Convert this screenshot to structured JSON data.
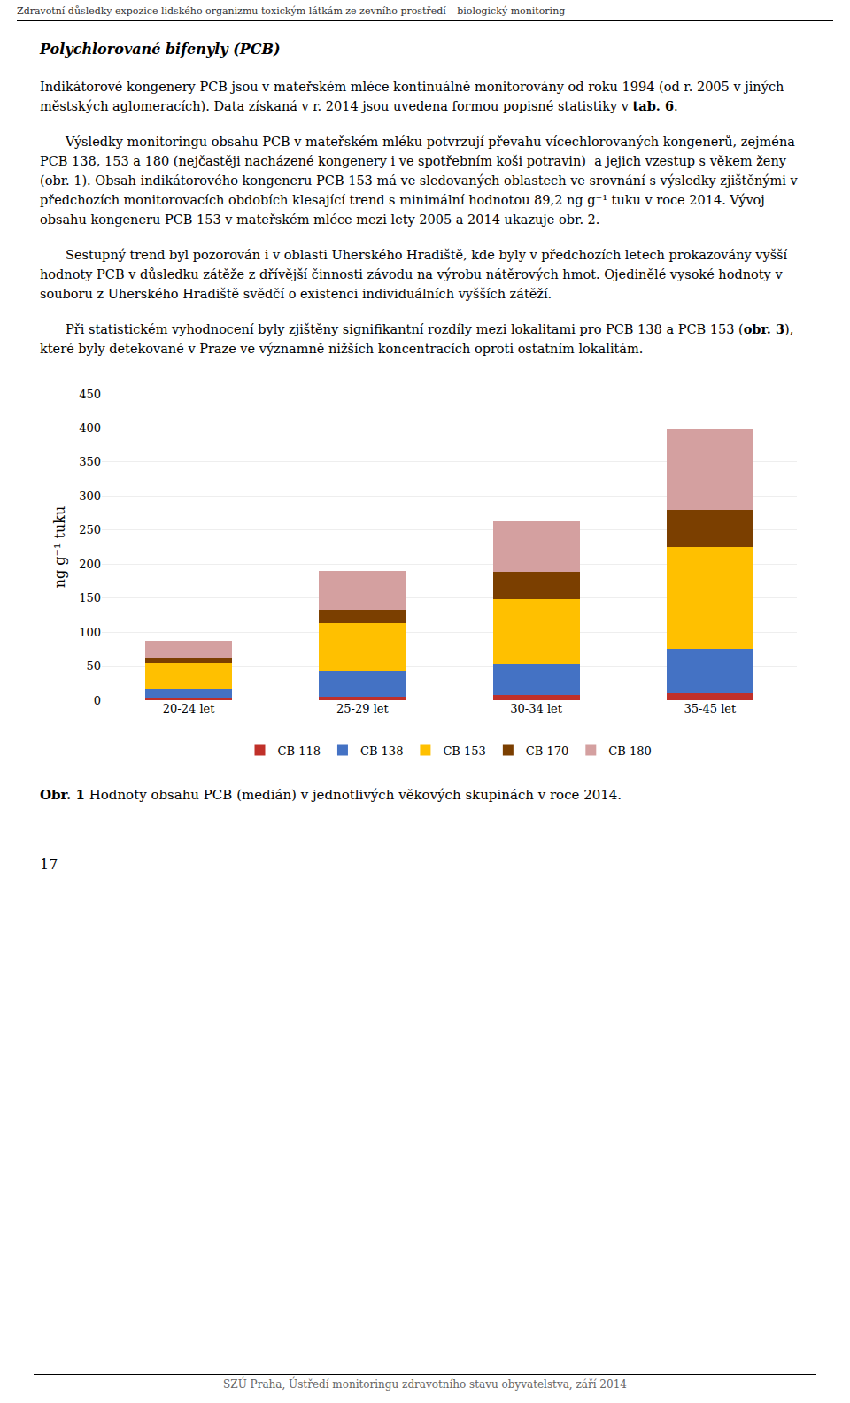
{
  "page": {
    "header": "Zdravotní důsledky expozice lidského organizmu toxickým látkám ze zevního prostředí – biologický monitoring",
    "heading": "Polychlorované bifenyly (PCB)",
    "paragraphs": [
      [
        {
          "text": "Indikátorové kongenery PCB jsou v mateřském mléce kontinuálně monitorovány od roku 1994 (od r. 2005 v jiných městských aglomeracích). Data získaná v r. 2014 jsou uvedena formou popisné statistiky v ",
          "bold": false
        },
        {
          "text": "tab. 6",
          "bold": true
        },
        {
          "text": ".",
          "bold": false
        }
      ],
      [
        {
          "text": "Výsledky monitoringu obsahu PCB v mateřském mléku potvrzují převahu vícechlorovaných kongenerů, zejména PCB 138, 153 a 180 (nejčastěji nacházené kongenery i ve spotřebním koši potravin)  a jejich vzestup s věkem ženy (obr. 1). Obsah indikátorového kongeneru PCB 153 má ve sledovaných oblastech ve srovnání s výsledky zjištěnými v předchozích monitorovacích obdobích klesající trend s minimální hodnotou 89,2 ng g⁻¹ tuku v roce 2014. Vývoj obsahu kongeneru PCB 153 v mateřském mléce mezi lety 2005 a 2014 ukazuje obr. 2.",
          "bold": false
        }
      ],
      [
        {
          "text": "Sestupný trend byl pozorován i v oblasti Uherského Hradiště, kde byly v předchozích letech prokazovány vyšší hodnoty PCB v důsledku zátěže z dřívější činnosti závodu na výrobu nátěrových hmot. Ojedinělé vysoké hodnoty v souboru z Uherského Hradiště svědčí o existenci individuálních vyšších zátěží.",
          "bold": false
        }
      ],
      [
        {
          "text": "Při statistickém vyhodnocení byly zjištěny signifikantní rozdíly mezi lokalitami pro PCB 138 a PCB 153 (",
          "bold": false
        },
        {
          "text": "obr. 3",
          "bold": true
        },
        {
          "text": "), které byly detekované v Praze ve významně nižších koncentracích oproti ostatním lokalitám.",
          "bold": false
        }
      ]
    ],
    "caption": [
      {
        "text": "Obr. 1",
        "bold": true
      },
      {
        "text": " Hodnoty obsahu PCB (medián) v jednotlivých věkových skupinách v roce 2014.",
        "bold": false
      }
    ],
    "page_number": "17",
    "footer": "SZÚ Praha, Ústředí monitoringu zdravotního stavu obyvatelstva, září 2014"
  },
  "chart_data": {
    "type": "bar",
    "stacked": true,
    "categories": [
      "20-24 let",
      "25-29 let",
      "30-34 let",
      "35-45 let"
    ],
    "series": [
      {
        "name": "CB 118",
        "color": "#C0302A",
        "values": [
          2,
          5,
          8,
          10
        ]
      },
      {
        "name": "CB 138",
        "color": "#4472C4",
        "values": [
          15,
          38,
          45,
          65
        ]
      },
      {
        "name": "CB 153",
        "color": "#FFC000",
        "values": [
          38,
          70,
          95,
          150
        ]
      },
      {
        "name": "CB 170",
        "color": "#7B3F00",
        "values": [
          8,
          20,
          40,
          55
        ]
      },
      {
        "name": "CB 180",
        "color": "#D4A0A0",
        "values": [
          24,
          57,
          75,
          118
        ]
      }
    ],
    "ylabel": "ng g⁻¹ tuku",
    "ylim": [
      0,
      450
    ],
    "yticks": [
      0,
      50,
      100,
      150,
      200,
      250,
      300,
      350,
      400,
      450
    ],
    "grid": true,
    "legend": "bottom"
  }
}
